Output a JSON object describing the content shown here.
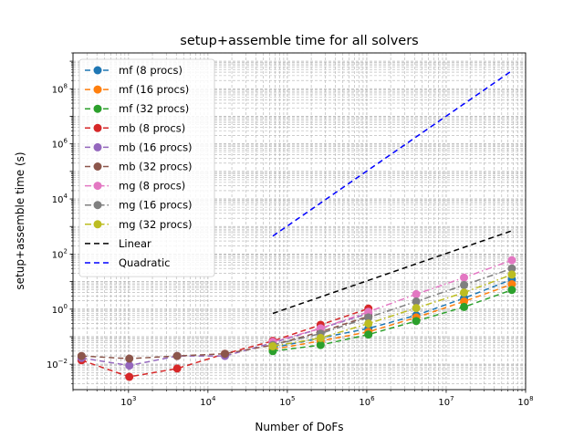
{
  "chart_data": {
    "type": "line",
    "title": "setup+assemble time for all solvers",
    "xlabel": "Number of DoFs",
    "ylabel": "setup+assemble time (s)",
    "x_scale": "log",
    "y_scale": "log",
    "xlim": [
      200,
      100000000
    ],
    "ylim": [
      0.0012,
      2000000000
    ],
    "x_tick_labels": [
      {
        "value": 1000,
        "base": "10",
        "exp": "3"
      },
      {
        "value": 10000,
        "base": "10",
        "exp": "4"
      },
      {
        "value": 100000,
        "base": "10",
        "exp": "5"
      },
      {
        "value": 1000000,
        "base": "10",
        "exp": "6"
      },
      {
        "value": 10000000,
        "base": "10",
        "exp": "7"
      },
      {
        "value": 100000000,
        "base": "10",
        "exp": "8"
      }
    ],
    "y_tick_labels": [
      {
        "value": 0.01,
        "base": "10",
        "exp": "−2"
      },
      {
        "value": 1,
        "base": "10",
        "exp": "0"
      },
      {
        "value": 100,
        "base": "10",
        "exp": "2"
      },
      {
        "value": 10000,
        "base": "10",
        "exp": "4"
      },
      {
        "value": 1000000,
        "base": "10",
        "exp": "6"
      },
      {
        "value": 100000000,
        "base": "10",
        "exp": "8"
      }
    ],
    "grid": true,
    "legend_position": "upper-left",
    "series": [
      {
        "name": "mf (8 procs)",
        "color": "#1f77b4",
        "dash": "6,4",
        "marker": true,
        "x": [
          65536,
          262144,
          1048576,
          4194304,
          16777216,
          67108864
        ],
        "y": [
          0.04,
          0.09,
          0.2,
          0.6,
          2.5,
          12
        ]
      },
      {
        "name": "mf (16 procs)",
        "color": "#ff7f0e",
        "dash": "6,4",
        "marker": true,
        "x": [
          65536,
          262144,
          1048576,
          4194304,
          16777216,
          67108864
        ],
        "y": [
          0.035,
          0.07,
          0.15,
          0.5,
          1.9,
          8
        ]
      },
      {
        "name": "mf (32 procs)",
        "color": "#2ca02c",
        "dash": "6,4",
        "marker": true,
        "x": [
          65536,
          262144,
          1048576,
          4194304,
          16777216,
          67108864
        ],
        "y": [
          0.03,
          0.05,
          0.12,
          0.37,
          1.2,
          5
        ]
      },
      {
        "name": "mb (8 procs)",
        "color": "#d62728",
        "dash": "6,4",
        "marker": true,
        "x": [
          256,
          1024,
          4096,
          16384,
          65536,
          262144,
          1048576
        ],
        "y": [
          0.014,
          0.0035,
          0.007,
          0.024,
          0.07,
          0.27,
          1.05
        ]
      },
      {
        "name": "mb (16 procs)",
        "color": "#9467bd",
        "dash": "6,4",
        "marker": true,
        "x": [
          256,
          1024,
          4096,
          16384,
          65536,
          262144,
          1048576
        ],
        "y": [
          0.017,
          0.009,
          0.02,
          0.02,
          0.06,
          0.2,
          0.7
        ]
      },
      {
        "name": "mb (32 procs)",
        "color": "#8c564b",
        "dash": "6,4",
        "marker": true,
        "x": [
          256,
          1024,
          4096,
          16384,
          65536,
          262144,
          1048576
        ],
        "y": [
          0.02,
          0.016,
          0.02,
          0.024,
          0.05,
          0.15,
          0.55
        ]
      },
      {
        "name": "mg (8 procs)",
        "color": "#e377c2",
        "dash": "7,3,1.5,3",
        "marker": true,
        "x": [
          65536,
          262144,
          1048576,
          4194304,
          16777216,
          67108864
        ],
        "y": [
          0.065,
          0.2,
          0.8,
          3.5,
          14,
          60
        ]
      },
      {
        "name": "mg (16 procs)",
        "color": "#7f7f7f",
        "dash": "7,3,1.5,3",
        "marker": true,
        "x": [
          65536,
          262144,
          1048576,
          4194304,
          16777216,
          67108864
        ],
        "y": [
          0.05,
          0.13,
          0.5,
          1.9,
          7.5,
          30
        ]
      },
      {
        "name": "mg (32 procs)",
        "color": "#bcbd22",
        "dash": "7,3,1.5,3",
        "marker": true,
        "x": [
          65536,
          262144,
          1048576,
          4194304,
          16777216,
          67108864
        ],
        "y": [
          0.045,
          0.09,
          0.3,
          1.1,
          4,
          18
        ]
      },
      {
        "name": "Linear",
        "color": "#000000",
        "dash": "6,4",
        "marker": false,
        "x": [
          65536,
          67108864
        ],
        "y": [
          0.7,
          700
        ]
      },
      {
        "name": "Quadratic",
        "color": "#0000ff",
        "dash": "6,4",
        "marker": false,
        "x": [
          65536,
          67108864
        ],
        "y": [
          450,
          450000000
        ]
      }
    ]
  }
}
